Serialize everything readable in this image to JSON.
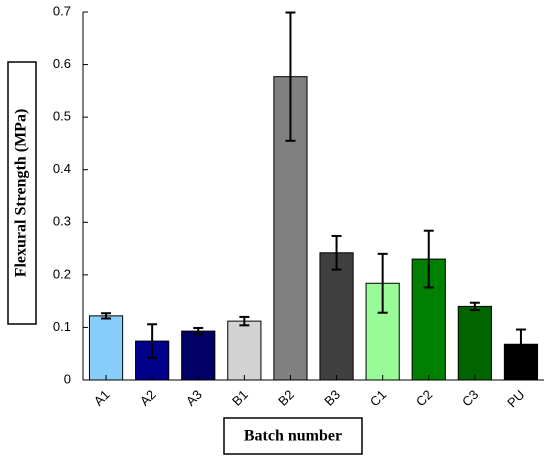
{
  "chart_data": {
    "type": "bar",
    "title": "",
    "xlabel": "Batch number",
    "ylabel": "Flexural Strength (MPa)",
    "ylim": [
      0,
      0.7
    ],
    "yticks": [
      "0",
      "0.1",
      "0.2",
      "0.3",
      "0.4",
      "0.5",
      "0.6",
      "0.7"
    ],
    "categories": [
      "A1",
      "A2",
      "A3",
      "B1",
      "B2",
      "B3",
      "C1",
      "C2",
      "C3",
      "PU"
    ],
    "values": [
      0.122,
      0.074,
      0.093,
      0.112,
      0.577,
      0.242,
      0.184,
      0.23,
      0.14,
      0.068
    ],
    "errors": [
      0.005,
      0.032,
      0.006,
      0.008,
      0.122,
      0.032,
      0.056,
      0.054,
      0.007,
      0.028
    ],
    "colors": [
      "#87cefa",
      "#00008b",
      "#000066",
      "#d3d3d3",
      "#808080",
      "#404040",
      "#98fb98",
      "#008000",
      "#006400",
      "#000000"
    ],
    "grid": false,
    "legend": "none"
  }
}
